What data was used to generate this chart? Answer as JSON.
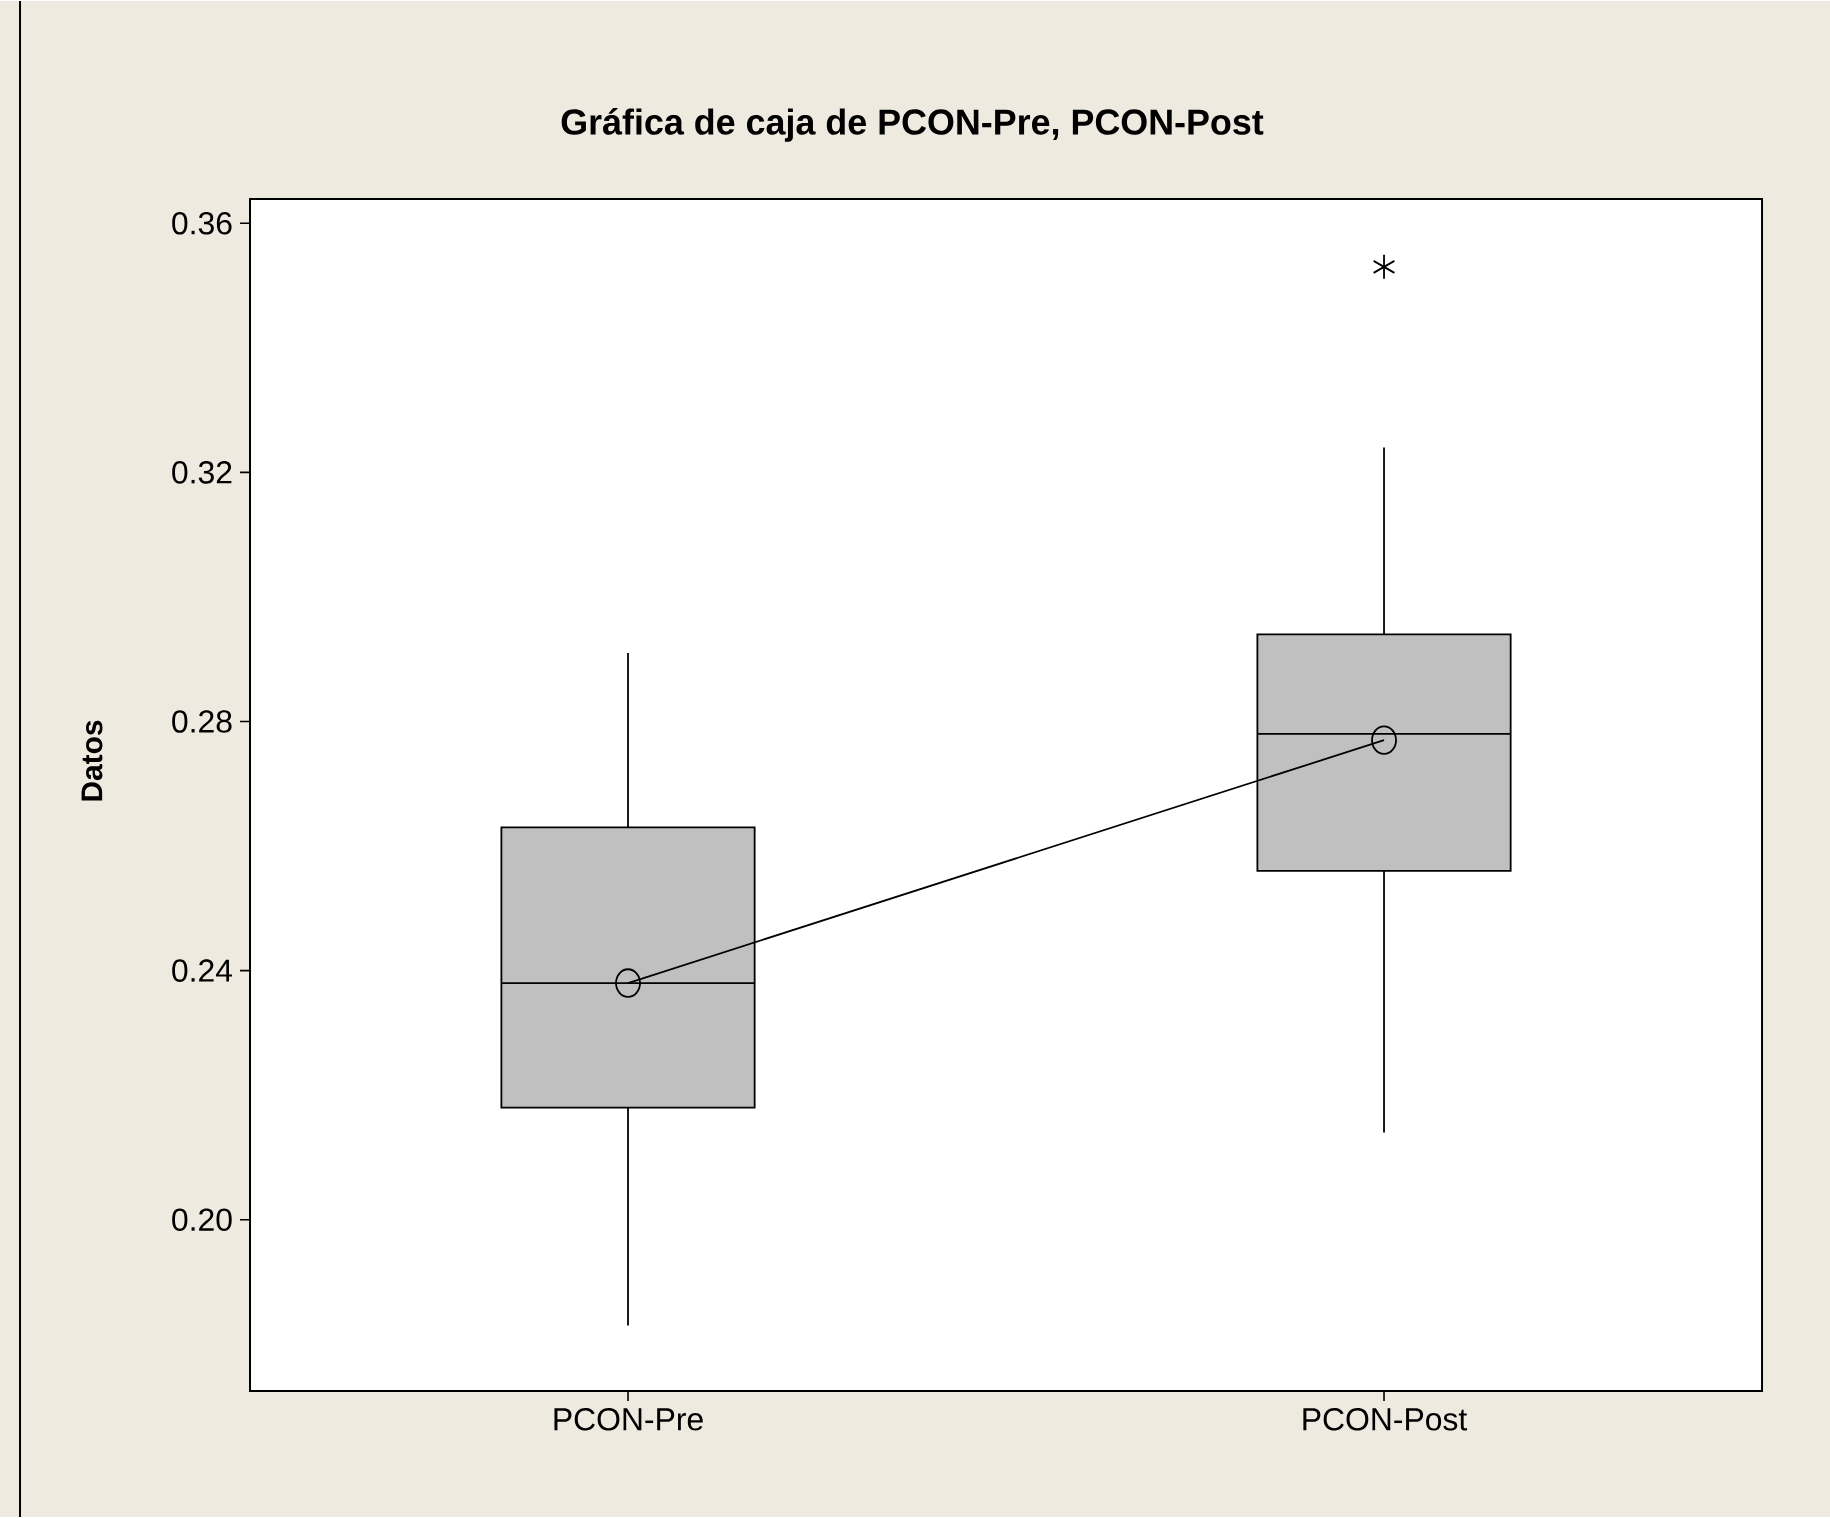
{
  "chart_data": {
    "type": "box",
    "title": "Gráfica de caja de PCON-Pre, PCON-Post",
    "ylabel": "Datos",
    "categories": [
      "PCON-Pre",
      "PCON-Post"
    ],
    "ylim": [
      0.1725,
      0.3639
    ],
    "yticks": [
      {
        "value": 0.2,
        "label": "0.20"
      },
      0.24,
      0.28,
      0.32,
      0.36
    ],
    "color": "#c0c0c0",
    "boxes": [
      {
        "low": 0.183,
        "q1": 0.218,
        "median": 0.238,
        "q3": 0.263,
        "high": 0.291
      },
      {
        "low": 0.214,
        "q1": 0.256,
        "median": 0.278,
        "q3": 0.294,
        "high": 0.324,
        "outliers": [
          0.353
        ]
      }
    ],
    "series": [
      {
        "type": "line",
        "color": "#000000",
        "marker": "circle",
        "values": [
          0.238,
          0.277
        ]
      }
    ],
    "grid": false
  }
}
